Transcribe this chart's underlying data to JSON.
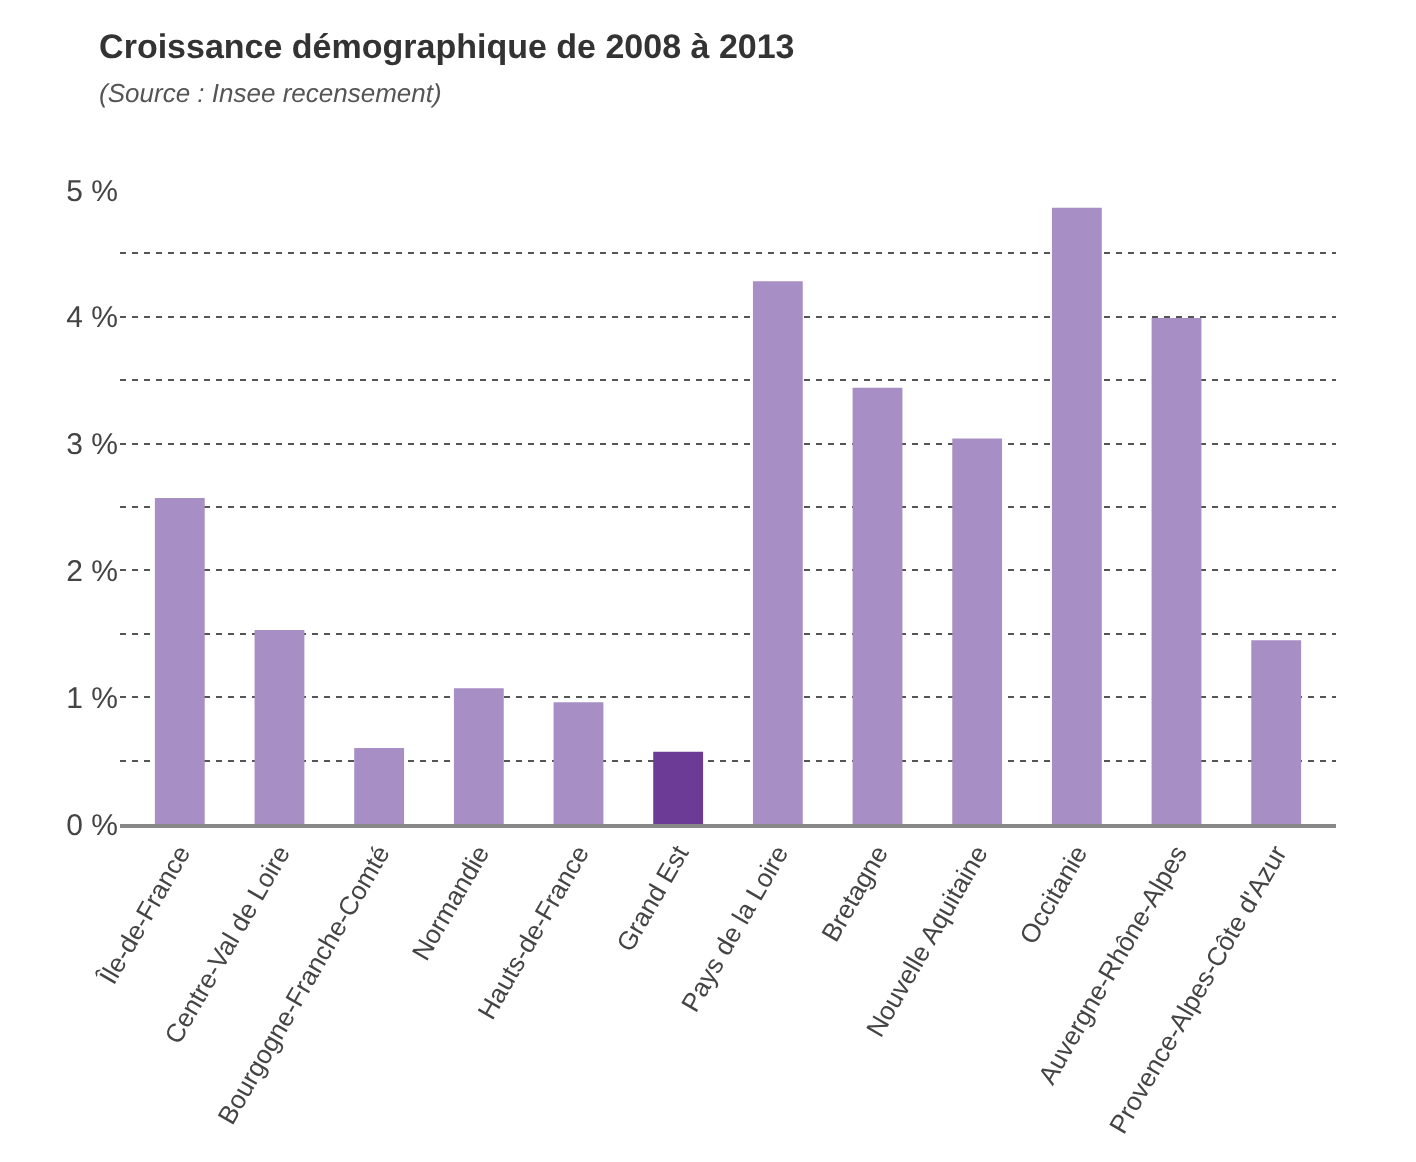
{
  "chart_data": {
    "type": "bar",
    "title": "Croissance démographique de 2008 à 2013",
    "subtitle": "(Source : Insee recensement)",
    "categories": [
      "Île-de-France",
      "Centre-Val de Loire",
      "Bourgogne-Franche-Comté",
      "Normandie",
      "Hauts-de-France",
      "Grand Est",
      "Pays de la Loire",
      "Bretagne",
      "Nouvelle Aquitaine",
      "Occitanie",
      "Auvergne-Rhône-Alpes",
      "Provence-Alpes-Côte d'Azur"
    ],
    "values": [
      2.57,
      1.53,
      0.6,
      1.07,
      0.96,
      0.57,
      4.28,
      3.44,
      3.04,
      4.86,
      3.99,
      1.45
    ],
    "colors": [
      "#a78ec4",
      "#a78ec4",
      "#a78ec4",
      "#a78ec4",
      "#a78ec4",
      "#6c3b96",
      "#a78ec4",
      "#a78ec4",
      "#a78ec4",
      "#a78ec4",
      "#a78ec4",
      "#a78ec4"
    ],
    "ylim": [
      0,
      5
    ],
    "yticks": [
      {
        "value": 0,
        "label": "0 %"
      },
      {
        "value": 0.5,
        "label": null
      },
      {
        "value": 1,
        "label": "1 %"
      },
      {
        "value": 1.5,
        "label": null
      },
      {
        "value": 2,
        "label": "2 %"
      },
      {
        "value": 2.5,
        "label": null
      },
      {
        "value": 3,
        "label": "3 %"
      },
      {
        "value": 3.5,
        "label": null
      },
      {
        "value": 4,
        "label": "4 %"
      },
      {
        "value": 4.5,
        "label": null
      },
      {
        "value": 5,
        "label": "5 %"
      }
    ],
    "grid": "y",
    "legend": false
  }
}
